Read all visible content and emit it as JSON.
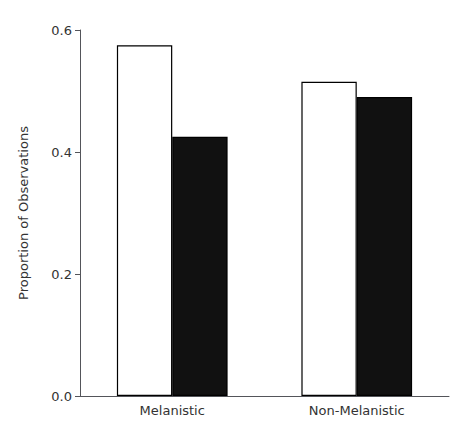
{
  "chart_data": {
    "type": "bar",
    "categories": [
      "Melanistic",
      "Non-Melanistic"
    ],
    "series": [
      {
        "color": "#ffffff",
        "values": [
          0.575,
          0.515
        ]
      },
      {
        "color": "#111111",
        "values": [
          0.425,
          0.49
        ]
      }
    ],
    "ylabel": "Proportion of Observations",
    "ylim": [
      0.0,
      0.6
    ],
    "yticks": [
      {
        "value": 0.0,
        "label": "0.0"
      },
      0.2,
      0.4,
      0.6
    ],
    "grid": false
  }
}
